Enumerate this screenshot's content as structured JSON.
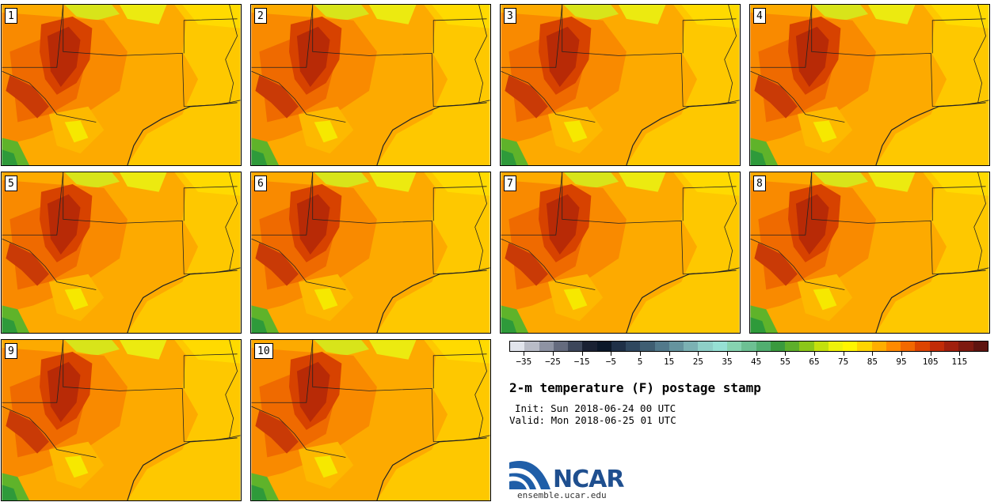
{
  "panels": [
    {
      "label": "1"
    },
    {
      "label": "2"
    },
    {
      "label": "3"
    },
    {
      "label": "4"
    },
    {
      "label": "5"
    },
    {
      "label": "6"
    },
    {
      "label": "7"
    },
    {
      "label": "8"
    },
    {
      "label": "9"
    },
    {
      "label": "10"
    }
  ],
  "colorbar": {
    "colors": [
      "#e1e4ec",
      "#b9bcc7",
      "#8e93a3",
      "#656b7e",
      "#3d465a",
      "#1a2133",
      "#0b1729",
      "#1f3048",
      "#2f475f",
      "#3f5e72",
      "#52798b",
      "#65949e",
      "#7bb1b3",
      "#8ecfc7",
      "#96e0d4",
      "#86d3b0",
      "#6dc093",
      "#51ae70",
      "#3a9a3e",
      "#5daf2b",
      "#8cc719",
      "#c3e00c",
      "#eef20a",
      "#fff600",
      "#ffd500",
      "#ffae00",
      "#ff8a00",
      "#f26800",
      "#dc4400",
      "#c22c08",
      "#a0200e",
      "#7e1a10",
      "#5e1410"
    ],
    "tick_labels": [
      "−35",
      "−25",
      "−15",
      "−5",
      "5",
      "15",
      "25",
      "35",
      "45",
      "55",
      "65",
      "75",
      "85",
      "95",
      "105",
      "115"
    ]
  },
  "title": "2-m temperature (F) postage stamp",
  "init_line": "Init: Sun 2018-06-24 00 UTC",
  "valid_line": "Valid: Mon 2018-06-25 01 UTC",
  "logo": {
    "wordmark": "NCAR",
    "url": "ensemble.ucar.edu"
  }
}
